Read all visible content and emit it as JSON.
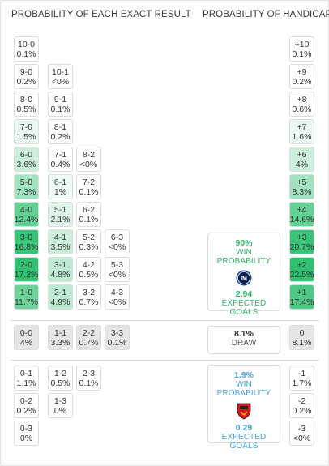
{
  "headers": {
    "left": "PROBABILITY OF EACH EXACT RESULT",
    "right": "PROBABILITY OF HANDICAP"
  },
  "home_scores": [
    {
      "score": "10-0",
      "prob": "0.1%",
      "shade": 0.0
    },
    {
      "score": "9-0",
      "prob": "0.2%",
      "shade": 0.0
    },
    {
      "score": "10-1",
      "prob": "<0%",
      "shade": 0.0
    },
    {
      "score": "8-0",
      "prob": "0.5%",
      "shade": 0.0
    },
    {
      "score": "9-1",
      "prob": "0.1%",
      "shade": 0.0
    },
    {
      "score": "7-0",
      "prob": "1.5%",
      "shade": 0.1
    },
    {
      "score": "8-1",
      "prob": "0.2%",
      "shade": 0.0
    },
    {
      "score": "6-0",
      "prob": "3.6%",
      "shade": 0.25
    },
    {
      "score": "7-1",
      "prob": "0.4%",
      "shade": 0.0
    },
    {
      "score": "8-2",
      "prob": "<0%",
      "shade": 0.0
    },
    {
      "score": "5-0",
      "prob": "7.3%",
      "shade": 0.45
    },
    {
      "score": "6-1",
      "prob": "1%",
      "shade": 0.08
    },
    {
      "score": "7-2",
      "prob": "0.1%",
      "shade": 0.0
    },
    {
      "score": "4-0",
      "prob": "12.4%",
      "shade": 0.75
    },
    {
      "score": "5-1",
      "prob": "2.1%",
      "shade": 0.15
    },
    {
      "score": "6-2",
      "prob": "0.1%",
      "shade": 0.0
    },
    {
      "score": "3-0",
      "prob": "16.8%",
      "shade": 0.95
    },
    {
      "score": "4-1",
      "prob": "3.5%",
      "shade": 0.25
    },
    {
      "score": "5-2",
      "prob": "0.3%",
      "shade": 0.0
    },
    {
      "score": "6-3",
      "prob": "<0%",
      "shade": 0.0
    },
    {
      "score": "2-0",
      "prob": "17.2%",
      "shade": 1.0
    },
    {
      "score": "3-1",
      "prob": "4.8%",
      "shade": 0.32
    },
    {
      "score": "4-2",
      "prob": "0.5%",
      "shade": 0.0
    },
    {
      "score": "5-3",
      "prob": "<0%",
      "shade": 0.0
    },
    {
      "score": "1-0",
      "prob": "11.7%",
      "shade": 0.7
    },
    {
      "score": "2-1",
      "prob": "4.9%",
      "shade": 0.32
    },
    {
      "score": "3-2",
      "prob": "0.7%",
      "shade": 0.0
    },
    {
      "score": "4-3",
      "prob": "<0%",
      "shade": 0.0
    }
  ],
  "draw_scores": [
    {
      "score": "0-0",
      "prob": "4%"
    },
    {
      "score": "1-1",
      "prob": "3.3%"
    },
    {
      "score": "2-2",
      "prob": "0.7%"
    },
    {
      "score": "3-3",
      "prob": "0.1%"
    }
  ],
  "away_scores": [
    {
      "score": "0-1",
      "prob": "1.1%"
    },
    {
      "score": "1-2",
      "prob": "0.5%"
    },
    {
      "score": "2-3",
      "prob": "0.1%"
    },
    {
      "score": "0-2",
      "prob": "0.2%"
    },
    {
      "score": "1-3",
      "prob": "0%"
    },
    {
      "score": "0-3",
      "prob": "0%"
    }
  ],
  "handicap_home": [
    {
      "label": "+10",
      "prob": "0.1%",
      "shade": 0.0
    },
    {
      "label": "+9",
      "prob": "0.2%",
      "shade": 0.0
    },
    {
      "label": "+8",
      "prob": "0.6%",
      "shade": 0.0
    },
    {
      "label": "+7",
      "prob": "1.6%",
      "shade": 0.1
    },
    {
      "label": "+6",
      "prob": "4%",
      "shade": 0.25
    },
    {
      "label": "+5",
      "prob": "8.3%",
      "shade": 0.45
    },
    {
      "label": "+4",
      "prob": "14.6%",
      "shade": 0.75
    },
    {
      "label": "+3",
      "prob": "20.7%",
      "shade": 0.95
    },
    {
      "label": "+2",
      "prob": "22.5%",
      "shade": 1.0
    },
    {
      "label": "+1",
      "prob": "17.4%",
      "shade": 0.85
    }
  ],
  "handicap_draw": {
    "label": "0",
    "prob": "8.1%"
  },
  "handicap_away": [
    {
      "label": "-1",
      "prob": "1.7%"
    },
    {
      "label": "-2",
      "prob": "0.2%"
    },
    {
      "label": "-3",
      "prob": "<0%"
    }
  ],
  "home_summary": {
    "win_prob": "90%",
    "win_label": "WIN PROBABILITY",
    "xg": "2.94",
    "xg_label": "EXPECTED GOALS",
    "logo": "inter-crest-icon"
  },
  "draw_summary": {
    "prob": "8.1%",
    "label": "DRAW"
  },
  "away_summary": {
    "win_prob": "1.9%",
    "win_label": "WIN PROBABILITY",
    "xg": "0.29",
    "xg_label": "EXPECTED GOALS",
    "logo": "urawa-crest-icon"
  },
  "colors": {
    "heat_low": "#ffffff",
    "heat_high": "#2fc070",
    "draw_bg": "#e6e6e6",
    "home_accent": "#2fb36a",
    "away_accent": "#4aa3df"
  }
}
